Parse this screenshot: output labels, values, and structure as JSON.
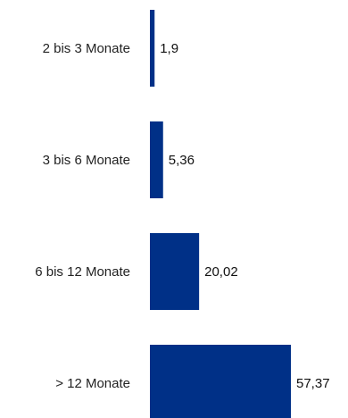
{
  "chart_data": {
    "type": "bar",
    "orientation": "horizontal",
    "categories": [
      "2 bis 3 Monate",
      "3 bis 6 Monate",
      "6 bis 12 Monate",
      "> 12 Monate"
    ],
    "values": [
      1.9,
      5.36,
      20.02,
      57.37
    ],
    "value_labels": [
      "1,9",
      "5,36",
      "20,02",
      "57,37"
    ],
    "bar_color": "#003087",
    "xlim": [
      0,
      57.37
    ],
    "grid": false,
    "legend": "none"
  }
}
